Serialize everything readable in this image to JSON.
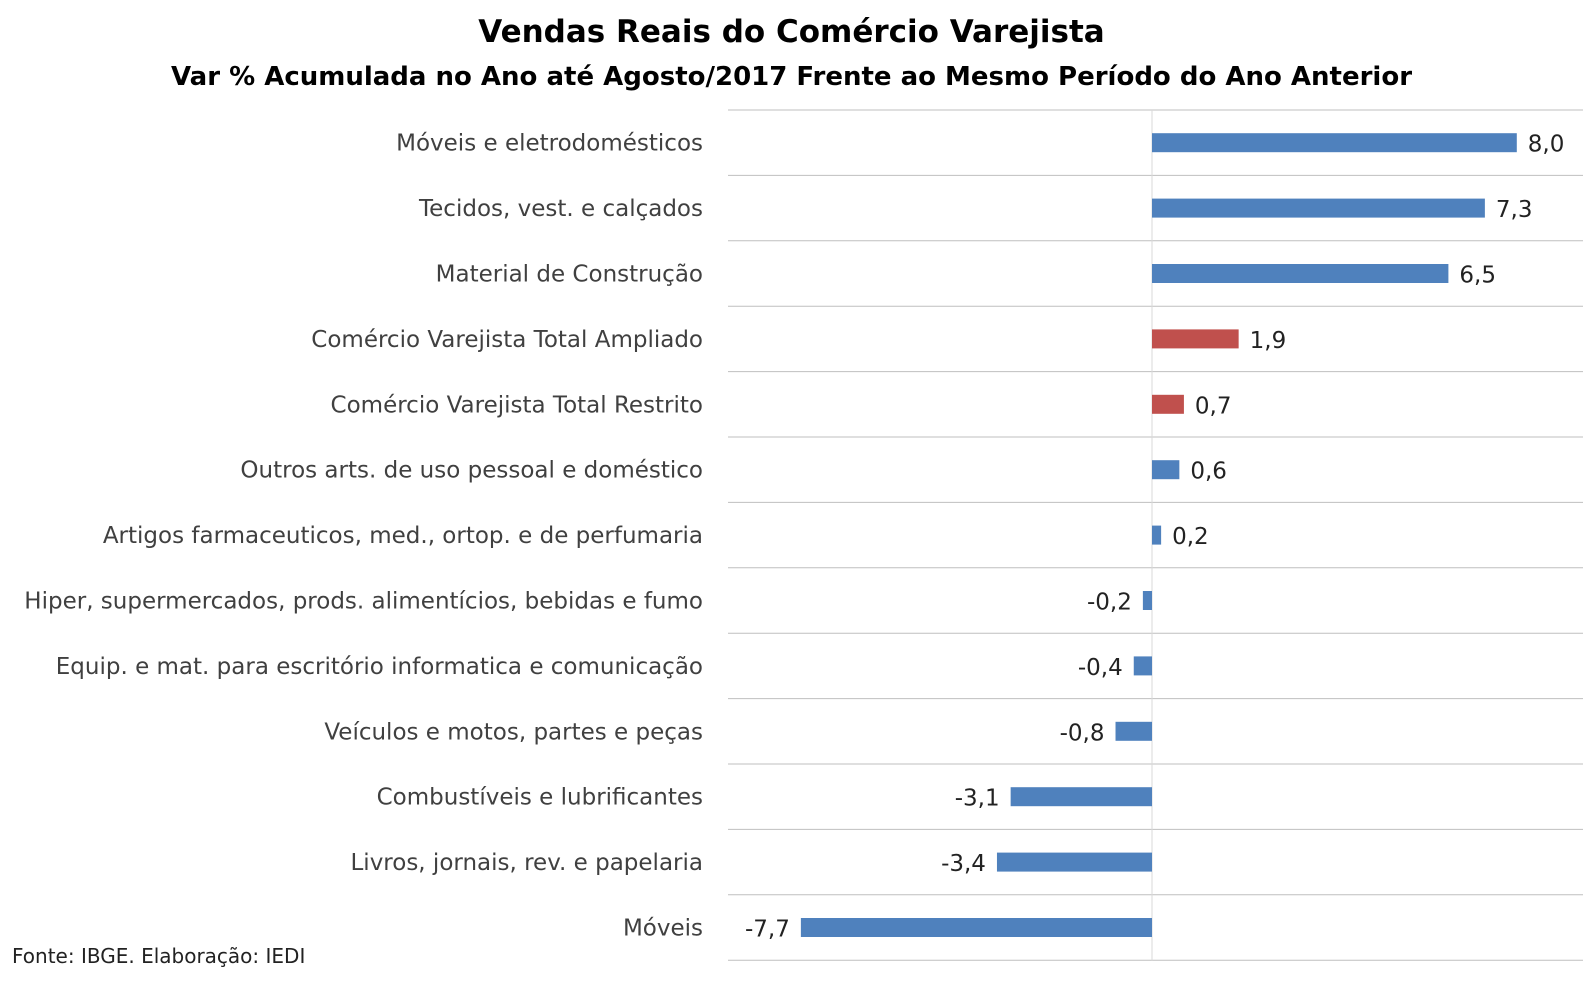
{
  "chart_data": {
    "type": "bar",
    "orientation": "horizontal",
    "title": "Vendas Reais do Comércio Varejista",
    "subtitle": "Var % Acumulada no Ano até Agosto/2017 Frente ao Mesmo Período do Ano Anterior",
    "categories": [
      "Móveis e eletrodomésticos",
      "Tecidos, vest. e calçados",
      "Material de Construção",
      "Comércio Varejista Total Ampliado",
      "Comércio Varejista Total Restrito",
      "Outros arts. de uso pessoal e doméstico",
      "Artigos farmaceuticos, med., ortop. e de perfumaria",
      "Hiper, supermercados, prods. alimentícios, bebidas e fumo",
      "Equip. e mat. para escritório informatica e comunicação",
      "Veículos e motos, partes e peças",
      "Combustíveis e lubrificantes",
      "Livros, jornais, rev. e papelaria",
      "Móveis"
    ],
    "values": [
      8.0,
      7.3,
      6.5,
      1.9,
      0.7,
      0.6,
      0.2,
      -0.2,
      -0.4,
      -0.8,
      -3.1,
      -3.4,
      -7.7
    ],
    "value_labels": [
      "8,0",
      "7,3",
      "6,5",
      "1,9",
      "0,7",
      "0,6",
      "0,2",
      "-0,2",
      "-0,4",
      "-0,8",
      "-3,1",
      "-3,4",
      "-7,7"
    ],
    "highlight": [
      false,
      false,
      false,
      true,
      true,
      false,
      false,
      false,
      false,
      false,
      false,
      false,
      false
    ],
    "colors": {
      "default": "#4f81bd",
      "highlight": "#c0504d",
      "grid": "#bfbfbf"
    },
    "xlim": [
      -10,
      9
    ],
    "grid": true,
    "legend": "none"
  },
  "source": "Fonte: IBGE. Elaboração: IEDI"
}
